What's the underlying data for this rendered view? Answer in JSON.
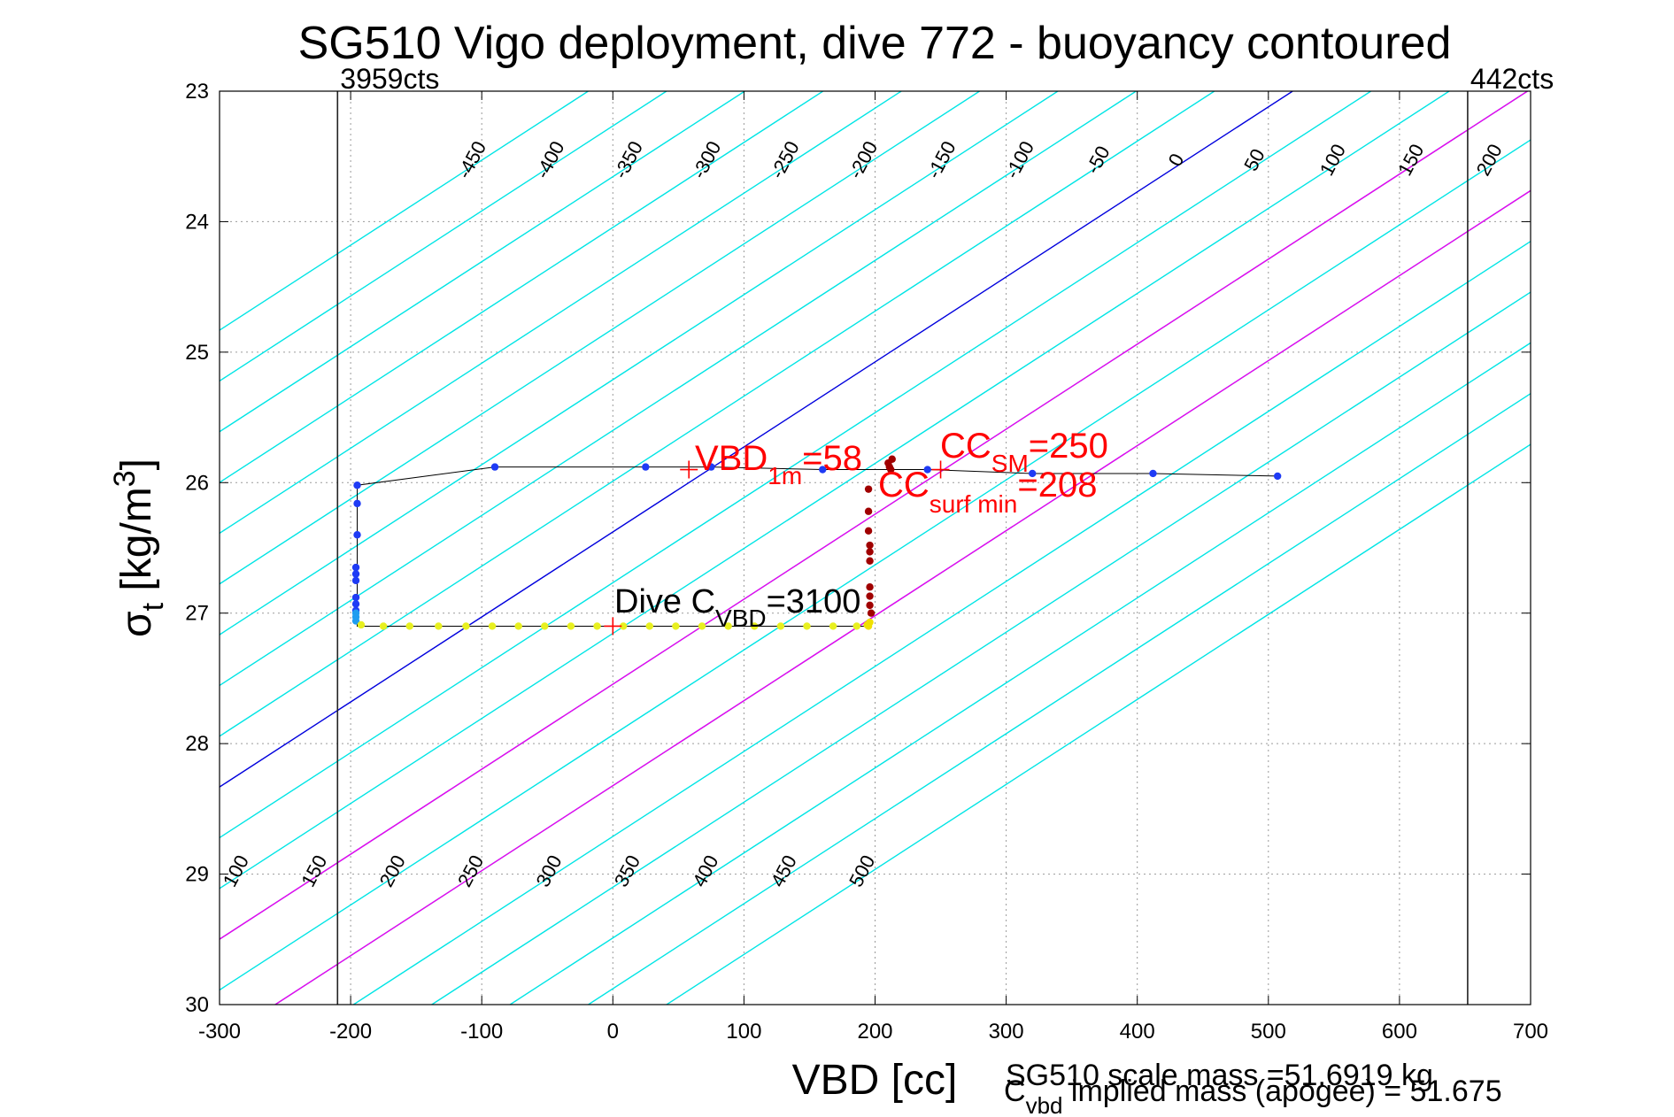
{
  "chart_data": {
    "type": "scatter",
    "title": "SG510 Vigo deployment, dive 772 - buoyancy contoured",
    "xlabel": "VBD [cc]",
    "ylabel_parts": [
      "σ",
      "t",
      " [kg/m",
      "3",
      "]"
    ],
    "xlim": [
      -300,
      700
    ],
    "ylim": [
      23,
      30
    ],
    "y_reversed": true,
    "grid": true,
    "xticks": [
      -300,
      -200,
      -100,
      0,
      100,
      200,
      300,
      400,
      500,
      600,
      700
    ],
    "yticks": [
      23,
      24,
      25,
      26,
      27,
      28,
      29,
      30
    ],
    "vbd_limit_lines": [
      {
        "x": -210,
        "label": "3959cts"
      },
      {
        "x": 652,
        "label": "442cts"
      }
    ],
    "contour_lines": {
      "levels_cyan": [
        -450,
        -400,
        -350,
        -300,
        -250,
        -200,
        -150,
        -100,
        -50,
        50,
        100,
        150,
        200,
        250,
        300,
        350,
        400,
        450,
        500
      ],
      "level_blue": 0,
      "levels_magenta": [
        150,
        250
      ],
      "x_at_sigma26_for_level0": 58,
      "cc_per_level_unit": 1.194,
      "cc_per_sigma_unit": -153.5,
      "top_labels": [
        "-450",
        "-400",
        "-350",
        "-300",
        "-250",
        "-200",
        "-150",
        "-100",
        "-50",
        "0",
        "50",
        "100",
        "150",
        "200",
        "250",
        "300",
        "350",
        "400",
        "450",
        "500"
      ],
      "bottom_labels": [
        "-200",
        "-150",
        "-100",
        "-50",
        "0",
        "50",
        "100",
        "150",
        "200",
        "250",
        "300",
        "350",
        "400",
        "450",
        "500"
      ]
    },
    "profile_trace": [
      [
        195,
        27.1
      ],
      [
        -195,
        27.1
      ],
      [
        -195,
        26.02
      ],
      [
        -90,
        25.88
      ],
      [
        25,
        25.88
      ],
      [
        75,
        25.88
      ],
      [
        160,
        25.9
      ],
      [
        240,
        25.9
      ],
      [
        320,
        25.93
      ],
      [
        412,
        25.93
      ],
      [
        507,
        25.95
      ]
    ],
    "series": [
      {
        "color": "#1f3bf5",
        "points": [
          [
            -195,
            26.02
          ],
          [
            -195,
            26.16
          ],
          [
            -195,
            26.4
          ],
          [
            -196,
            26.65
          ],
          [
            -196,
            26.7
          ],
          [
            -196,
            26.75
          ],
          [
            -196,
            26.88
          ],
          [
            -196,
            26.93
          ],
          [
            -196,
            26.98
          ],
          [
            -90,
            25.88
          ],
          [
            25,
            25.88
          ],
          [
            75,
            25.88
          ],
          [
            160,
            25.9
          ],
          [
            240,
            25.9
          ],
          [
            320,
            25.93
          ],
          [
            412,
            25.93
          ],
          [
            507,
            25.95
          ]
        ]
      },
      {
        "color": "#1e9cf0",
        "points": [
          [
            -196,
            27.0
          ],
          [
            -196,
            27.03
          ],
          [
            -196,
            27.06
          ]
        ]
      },
      {
        "color": "#e8f020",
        "points": [
          [
            -192,
            27.09
          ],
          [
            -175,
            27.1
          ],
          [
            -155,
            27.1
          ],
          [
            -133,
            27.1
          ],
          [
            -112,
            27.1
          ],
          [
            -92,
            27.1
          ],
          [
            -72,
            27.1
          ],
          [
            -52,
            27.1
          ],
          [
            -32,
            27.1
          ],
          [
            -12,
            27.1
          ],
          [
            8,
            27.1
          ],
          [
            28,
            27.1
          ],
          [
            48,
            27.1
          ],
          [
            68,
            27.1
          ],
          [
            88,
            27.1
          ],
          [
            108,
            27.1
          ],
          [
            128,
            27.1
          ],
          [
            148,
            27.1
          ],
          [
            168,
            27.1
          ],
          [
            186,
            27.1
          ]
        ]
      },
      {
        "color": "#f0e000",
        "points": [
          [
            194,
            27.09
          ],
          [
            195,
            27.1
          ],
          [
            196,
            27.07
          ]
        ]
      },
      {
        "color": "#a00000",
        "points": [
          [
            195,
            26.05
          ],
          [
            195,
            26.22
          ],
          [
            195,
            26.37
          ],
          [
            196,
            26.48
          ],
          [
            196,
            26.53
          ],
          [
            196,
            26.6
          ],
          [
            196,
            26.8
          ],
          [
            196,
            26.87
          ],
          [
            196,
            26.94
          ],
          [
            197,
            27.0
          ],
          [
            210,
            25.85
          ],
          [
            211,
            25.88
          ],
          [
            212,
            25.9
          ],
          [
            213,
            25.82
          ]
        ]
      }
    ],
    "markers": [
      {
        "x": 58,
        "y": 25.9
      },
      {
        "x": 250,
        "y": 25.9
      },
      {
        "x": 0,
        "y": 27.1
      }
    ],
    "annotations": {
      "vbd1m": {
        "main": "VBD",
        "sub": "1m",
        "tail": "=58"
      },
      "ccsm": {
        "main": "CC",
        "sub": "SM",
        "tail": "=250"
      },
      "ccsurf": {
        "main": "CC",
        "sub": "surf min",
        "tail": "=208"
      },
      "dive_cvbd": {
        "main": "Dive C",
        "sub": "VBD",
        "tail": "=3100"
      }
    },
    "footer_lines": {
      "scale_mass": "SG510 scale mass =51.6919 kg",
      "implied_main": "C",
      "implied_sub": "vbd",
      "implied_tail": " implied mass (apogee) = 51.675"
    },
    "colors": {
      "contour_cyan": "#00e5e5",
      "contour_zero": "#0000dd",
      "contour_special": "#ee00ee",
      "annotation_red": "#ff0000",
      "trace": "#000000",
      "limit_line": "#222222"
    }
  }
}
